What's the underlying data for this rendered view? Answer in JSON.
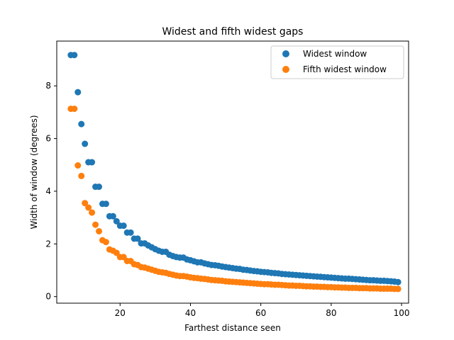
{
  "chart_data": {
    "type": "scatter",
    "title": "Widest and fifth widest gaps",
    "xlabel": "Farthest distance seen",
    "ylabel": "Width of window (degrees)",
    "xlim": [
      2,
      102
    ],
    "ylim": [
      -0.25,
      9.7
    ],
    "xticks": [
      20,
      40,
      60,
      80,
      100
    ],
    "yticks": [
      0,
      2,
      4,
      6,
      8
    ],
    "grid": false,
    "legend": "top-right",
    "x": [
      6,
      7,
      8,
      9,
      10,
      11,
      12,
      13,
      14,
      15,
      16,
      17,
      18,
      19,
      20,
      21,
      22,
      23,
      24,
      25,
      26,
      27,
      28,
      29,
      30,
      31,
      32,
      33,
      34,
      35,
      36,
      37,
      38,
      39,
      40,
      41,
      42,
      43,
      44,
      45,
      46,
      47,
      48,
      49,
      50,
      51,
      52,
      53,
      54,
      55,
      56,
      57,
      58,
      59,
      60,
      61,
      62,
      63,
      64,
      65,
      66,
      67,
      68,
      69,
      70,
      71,
      72,
      73,
      74,
      75,
      76,
      77,
      78,
      79,
      80,
      81,
      82,
      83,
      84,
      85,
      86,
      87,
      88,
      89,
      90,
      91,
      92,
      93,
      94,
      95,
      96,
      97,
      98,
      99
    ],
    "series": [
      {
        "name": "Widest window",
        "color": "#1f77b4",
        "values": [
          9.17,
          9.17,
          7.76,
          6.55,
          5.8,
          5.1,
          5.1,
          4.17,
          4.17,
          3.52,
          3.52,
          3.05,
          3.05,
          2.86,
          2.69,
          2.69,
          2.43,
          2.43,
          2.2,
          2.2,
          2.02,
          2.02,
          1.94,
          1.87,
          1.8,
          1.74,
          1.7,
          1.7,
          1.59,
          1.54,
          1.5,
          1.48,
          1.48,
          1.41,
          1.38,
          1.34,
          1.3,
          1.3,
          1.26,
          1.23,
          1.2,
          1.19,
          1.17,
          1.14,
          1.12,
          1.1,
          1.08,
          1.06,
          1.05,
          1.02,
          1.01,
          0.99,
          0.97,
          0.96,
          0.94,
          0.93,
          0.92,
          0.9,
          0.89,
          0.88,
          0.86,
          0.85,
          0.84,
          0.83,
          0.82,
          0.81,
          0.8,
          0.79,
          0.78,
          0.77,
          0.76,
          0.75,
          0.74,
          0.73,
          0.72,
          0.71,
          0.7,
          0.69,
          0.68,
          0.68,
          0.67,
          0.66,
          0.65,
          0.64,
          0.63,
          0.62,
          0.62,
          0.61,
          0.6,
          0.6,
          0.59,
          0.58,
          0.57,
          0.55
        ]
      },
      {
        "name": "Fifth widest window",
        "color": "#ff7f0e",
        "values": [
          7.13,
          7.13,
          4.98,
          4.58,
          3.55,
          3.38,
          3.19,
          2.73,
          2.48,
          2.14,
          2.07,
          1.79,
          1.74,
          1.66,
          1.5,
          1.5,
          1.35,
          1.35,
          1.23,
          1.2,
          1.12,
          1.1,
          1.06,
          1.02,
          0.98,
          0.94,
          0.92,
          0.9,
          0.86,
          0.83,
          0.8,
          0.78,
          0.78,
          0.76,
          0.73,
          0.71,
          0.7,
          0.68,
          0.67,
          0.65,
          0.63,
          0.62,
          0.61,
          0.6,
          0.58,
          0.57,
          0.56,
          0.55,
          0.54,
          0.53,
          0.52,
          0.51,
          0.5,
          0.49,
          0.48,
          0.47,
          0.47,
          0.46,
          0.45,
          0.45,
          0.44,
          0.43,
          0.42,
          0.42,
          0.41,
          0.41,
          0.4,
          0.39,
          0.39,
          0.38,
          0.38,
          0.37,
          0.37,
          0.36,
          0.36,
          0.35,
          0.35,
          0.34,
          0.34,
          0.33,
          0.33,
          0.33,
          0.32,
          0.32,
          0.32,
          0.31,
          0.31,
          0.31,
          0.3,
          0.3,
          0.3,
          0.3,
          0.29,
          0.29
        ]
      }
    ]
  }
}
